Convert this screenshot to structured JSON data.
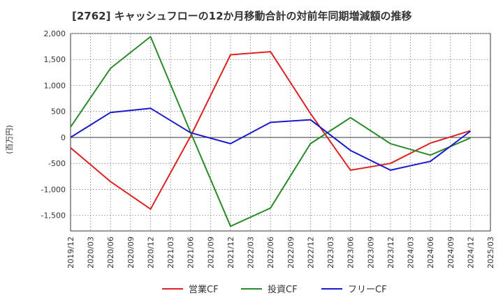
{
  "chart_data": {
    "type": "line",
    "title": "[2762]  キャッシュフローの12か月移動合計の対前年同期増減額の推移",
    "ylabel": "(百万円)",
    "xlabel": "",
    "ylim": [
      -1800,
      2000
    ],
    "yticks": [
      2000,
      1500,
      1000,
      500,
      0,
      -500,
      -1000,
      -1500
    ],
    "ytick_labels": [
      "2,000",
      "1,500",
      "1,000",
      "500",
      "0",
      "-500",
      "-1,000",
      "-1,500"
    ],
    "x": [
      "2019/12",
      "2020/03",
      "2020/06",
      "2020/09",
      "2020/12",
      "2021/03",
      "2021/06",
      "2021/09",
      "2021/12",
      "2022/03",
      "2022/06",
      "2022/09",
      "2022/12",
      "2023/03",
      "2023/06",
      "2023/09",
      "2023/12",
      "2024/03",
      "2024/06",
      "2024/09",
      "2024/12",
      "2025/03"
    ],
    "grid": true,
    "legend_position": "bottom",
    "series": [
      {
        "name": "営業CF",
        "color": "#dd2222",
        "points": [
          [
            "2019/12",
            -200
          ],
          [
            "2020/06",
            -850
          ],
          [
            "2020/12",
            -1380
          ],
          [
            "2021/06",
            20
          ],
          [
            "2021/12",
            1590
          ],
          [
            "2022/06",
            1650
          ],
          [
            "2022/12",
            460
          ],
          [
            "2023/06",
            -630
          ],
          [
            "2023/12",
            -500
          ],
          [
            "2024/06",
            -110
          ],
          [
            "2024/12",
            130
          ]
        ]
      },
      {
        "name": "投資CF",
        "color": "#2a8a2a",
        "points": [
          [
            "2019/12",
            200
          ],
          [
            "2020/06",
            1330
          ],
          [
            "2020/12",
            1940
          ],
          [
            "2021/06",
            100
          ],
          [
            "2021/12",
            -1710
          ],
          [
            "2022/06",
            -1360
          ],
          [
            "2022/12",
            -120
          ],
          [
            "2023/06",
            380
          ],
          [
            "2023/12",
            -120
          ],
          [
            "2024/06",
            -340
          ],
          [
            "2024/12",
            -10
          ]
        ]
      },
      {
        "name": "フリーCF",
        "color": "#1a1acc",
        "points": [
          [
            "2019/12",
            0
          ],
          [
            "2020/06",
            480
          ],
          [
            "2020/12",
            560
          ],
          [
            "2021/06",
            90
          ],
          [
            "2021/12",
            -120
          ],
          [
            "2022/06",
            290
          ],
          [
            "2022/12",
            340
          ],
          [
            "2023/06",
            -250
          ],
          [
            "2023/12",
            -630
          ],
          [
            "2024/06",
            -460
          ],
          [
            "2024/12",
            120
          ]
        ]
      }
    ]
  }
}
